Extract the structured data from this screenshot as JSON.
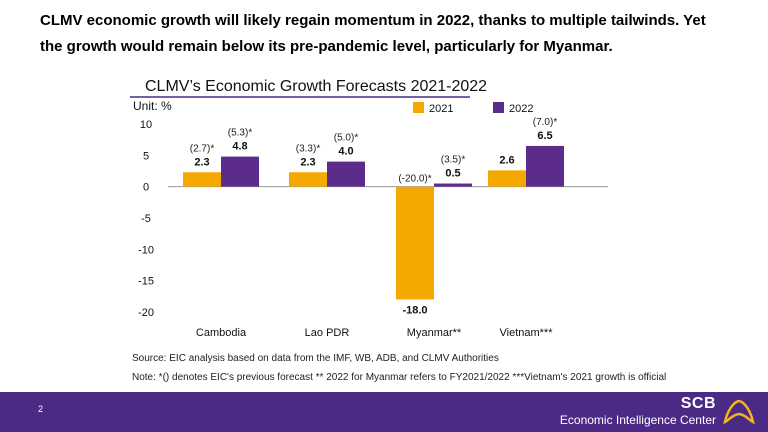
{
  "headline": {
    "line1": "CLMV economic growth will likely regain momentum in 2022, thanks to multiple tailwinds. Yet",
    "line2": "the growth would remain below its pre-pandemic level, particularly for Myanmar."
  },
  "chart_data": {
    "type": "bar",
    "title": "CLMV’s Economic Growth Forecasts 2021-2022",
    "unit_label": "Unit: %",
    "categories": [
      "Cambodia",
      "Lao PDR",
      "Myanmar**",
      "Vietnam***"
    ],
    "series": [
      {
        "name": "2021",
        "color": "#f5a800",
        "values": [
          2.3,
          2.3,
          -18.0,
          2.6
        ],
        "value_labels": [
          "2.3",
          "2.3",
          "-18.0",
          "2.6"
        ],
        "previous_forecast_labels": [
          "(2.7)*",
          "(3.3)*",
          "(-20.0)*",
          ""
        ]
      },
      {
        "name": "2022",
        "color": "#5b2c8c",
        "values": [
          4.8,
          4.0,
          0.5,
          6.5
        ],
        "value_labels": [
          "4.8",
          "4.0",
          "0.5",
          "6.5"
        ],
        "previous_forecast_labels": [
          "(5.3)*",
          "(5.0)*",
          "(3.5)*",
          "(7.0)*"
        ]
      }
    ],
    "yticks": [
      "10",
      "5",
      "0",
      "-5",
      "-10",
      "-15",
      "-20"
    ],
    "ytick_values": [
      10,
      5,
      0,
      -5,
      -10,
      -15,
      -20
    ],
    "ylim": [
      -20,
      10
    ],
    "grid": false,
    "legend_position": "top-right"
  },
  "notes": {
    "source": "Source: EIC analysis based on data from the IMF, WB, ADB, and CLMV Authorities",
    "note": "Note: *() denotes EIC's previous forecast ** 2022 for Myanmar refers to FY2021/2022 ***Vietnam's 2021 growth is official"
  },
  "footer": {
    "page_number": "2",
    "brand_name": "SCB",
    "brand_subtitle": "Economic Intelligence Center",
    "bar_color": "#4b2a86",
    "logo_color": "#f5b21c"
  }
}
